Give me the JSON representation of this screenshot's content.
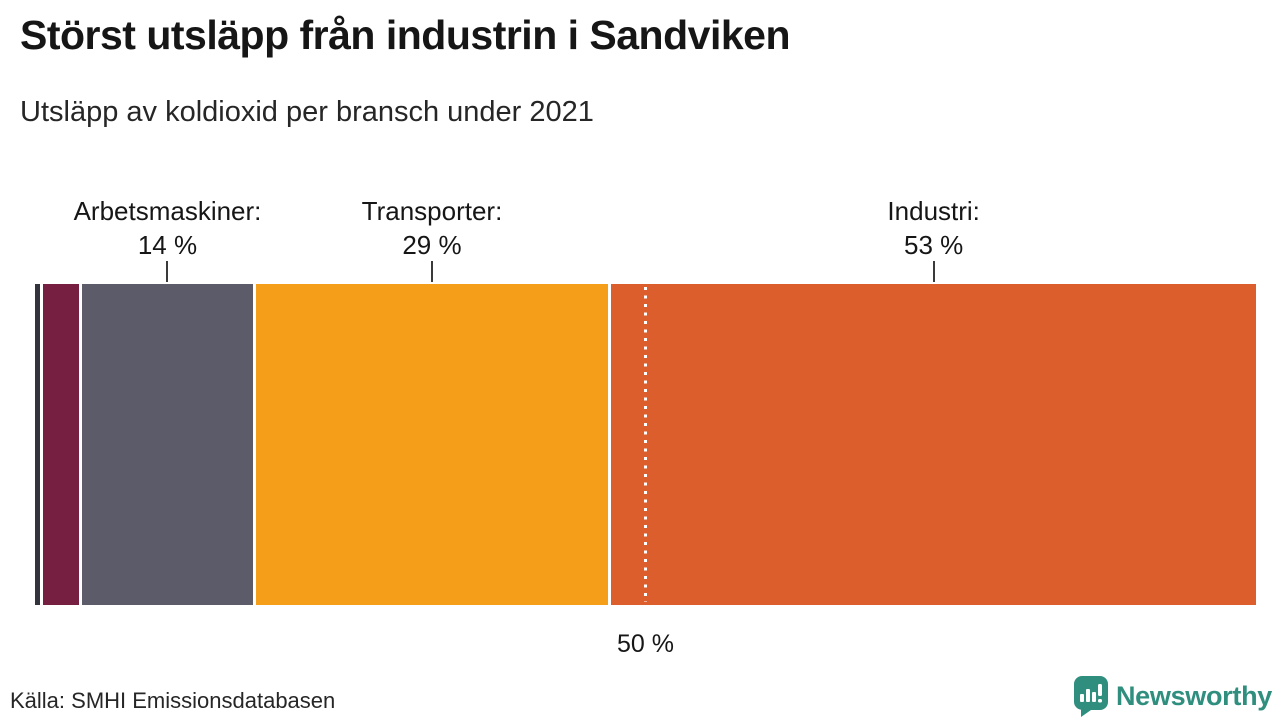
{
  "title": "Störst utsläpp från industrin i Sandviken",
  "subtitle": "Utsläpp av koldioxid per bransch under 2021",
  "source": "Källa: SMHI Emissionsdatabasen",
  "brand": {
    "name": "Newsworthy",
    "color": "#2f8e7e",
    "icon": "speech-bubble-bar-chart-icon"
  },
  "colors": {
    "background": "#ffffff",
    "text": "#161616",
    "tick": "#3a3a3a",
    "dotted_line": "#ffffff"
  },
  "chart_data": {
    "type": "bar",
    "variant": "horizontal-stacked-100pct",
    "title": "Störst utsläpp från industrin i Sandviken",
    "subtitle": "Utsläpp av koldioxid per bransch under 2021",
    "unit": "percent",
    "xlim": [
      0,
      100
    ],
    "grid": false,
    "legend": "none (direct callout labels above bar)",
    "segments": [
      {
        "name": "unlabeled-small-1",
        "value": 0.4,
        "color": "#32333d",
        "callout_label": "",
        "callout_value": ""
      },
      {
        "name": "unlabeled-small-2",
        "value": 3,
        "color": "#771f41",
        "callout_label": "",
        "callout_value": ""
      },
      {
        "name": "Arbetsmaskiner",
        "value": 14,
        "color": "#5b5b69",
        "callout_label": "Arbetsmaskiner:",
        "callout_value": "14 %"
      },
      {
        "name": "Transporter",
        "value": 29,
        "color": "#f59e19",
        "callout_label": "Transporter:",
        "callout_value": "29 %"
      },
      {
        "name": "Industri",
        "value": 53,
        "color": "#dc5e2c",
        "callout_label": "Industri:",
        "callout_value": "53 %"
      }
    ],
    "annotations": [
      {
        "type": "dotted-vline",
        "at_percent": 50,
        "label": "50 %"
      }
    ]
  }
}
